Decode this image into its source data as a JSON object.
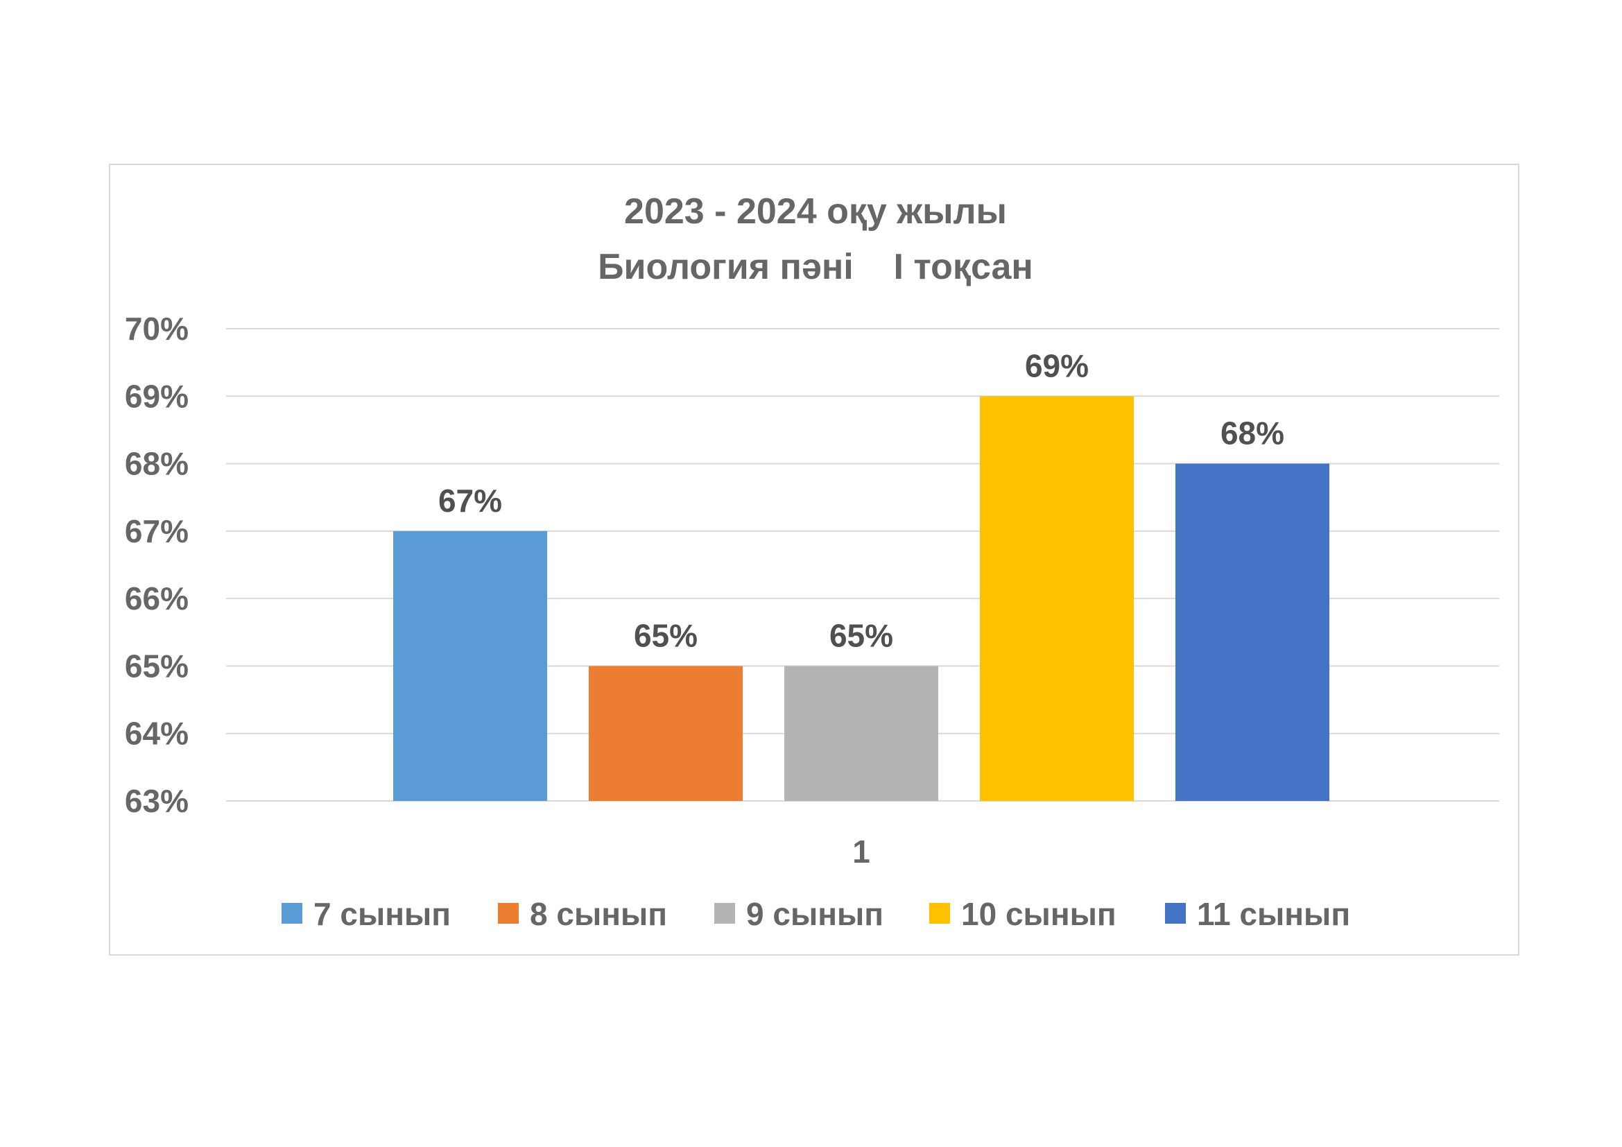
{
  "chart_data": {
    "type": "bar",
    "title_lines": [
      "2023 - 2024 оқу жылы",
      "Биология пәні    І тоқсан"
    ],
    "categories": [
      "1"
    ],
    "series": [
      {
        "name": "7 сынып",
        "values": [
          67
        ],
        "label": "67%",
        "color": "#5B9BD5"
      },
      {
        "name": "8 сынып",
        "values": [
          65
        ],
        "label": "65%",
        "color": "#ED7D31"
      },
      {
        "name": "9 сынып",
        "values": [
          65
        ],
        "label": "65%",
        "color": "#B4B4B4"
      },
      {
        "name": "10 сынып",
        "values": [
          69
        ],
        "label": "69%",
        "color": "#FFC000"
      },
      {
        "name": "11 сынып",
        "values": [
          68
        ],
        "label": "68%",
        "color": "#4472C4"
      }
    ],
    "ylim": [
      63,
      70
    ],
    "yticks": [
      "63%",
      "64%",
      "65%",
      "66%",
      "67%",
      "68%",
      "69%",
      "70%"
    ],
    "grid": true,
    "legend": "bottom"
  }
}
